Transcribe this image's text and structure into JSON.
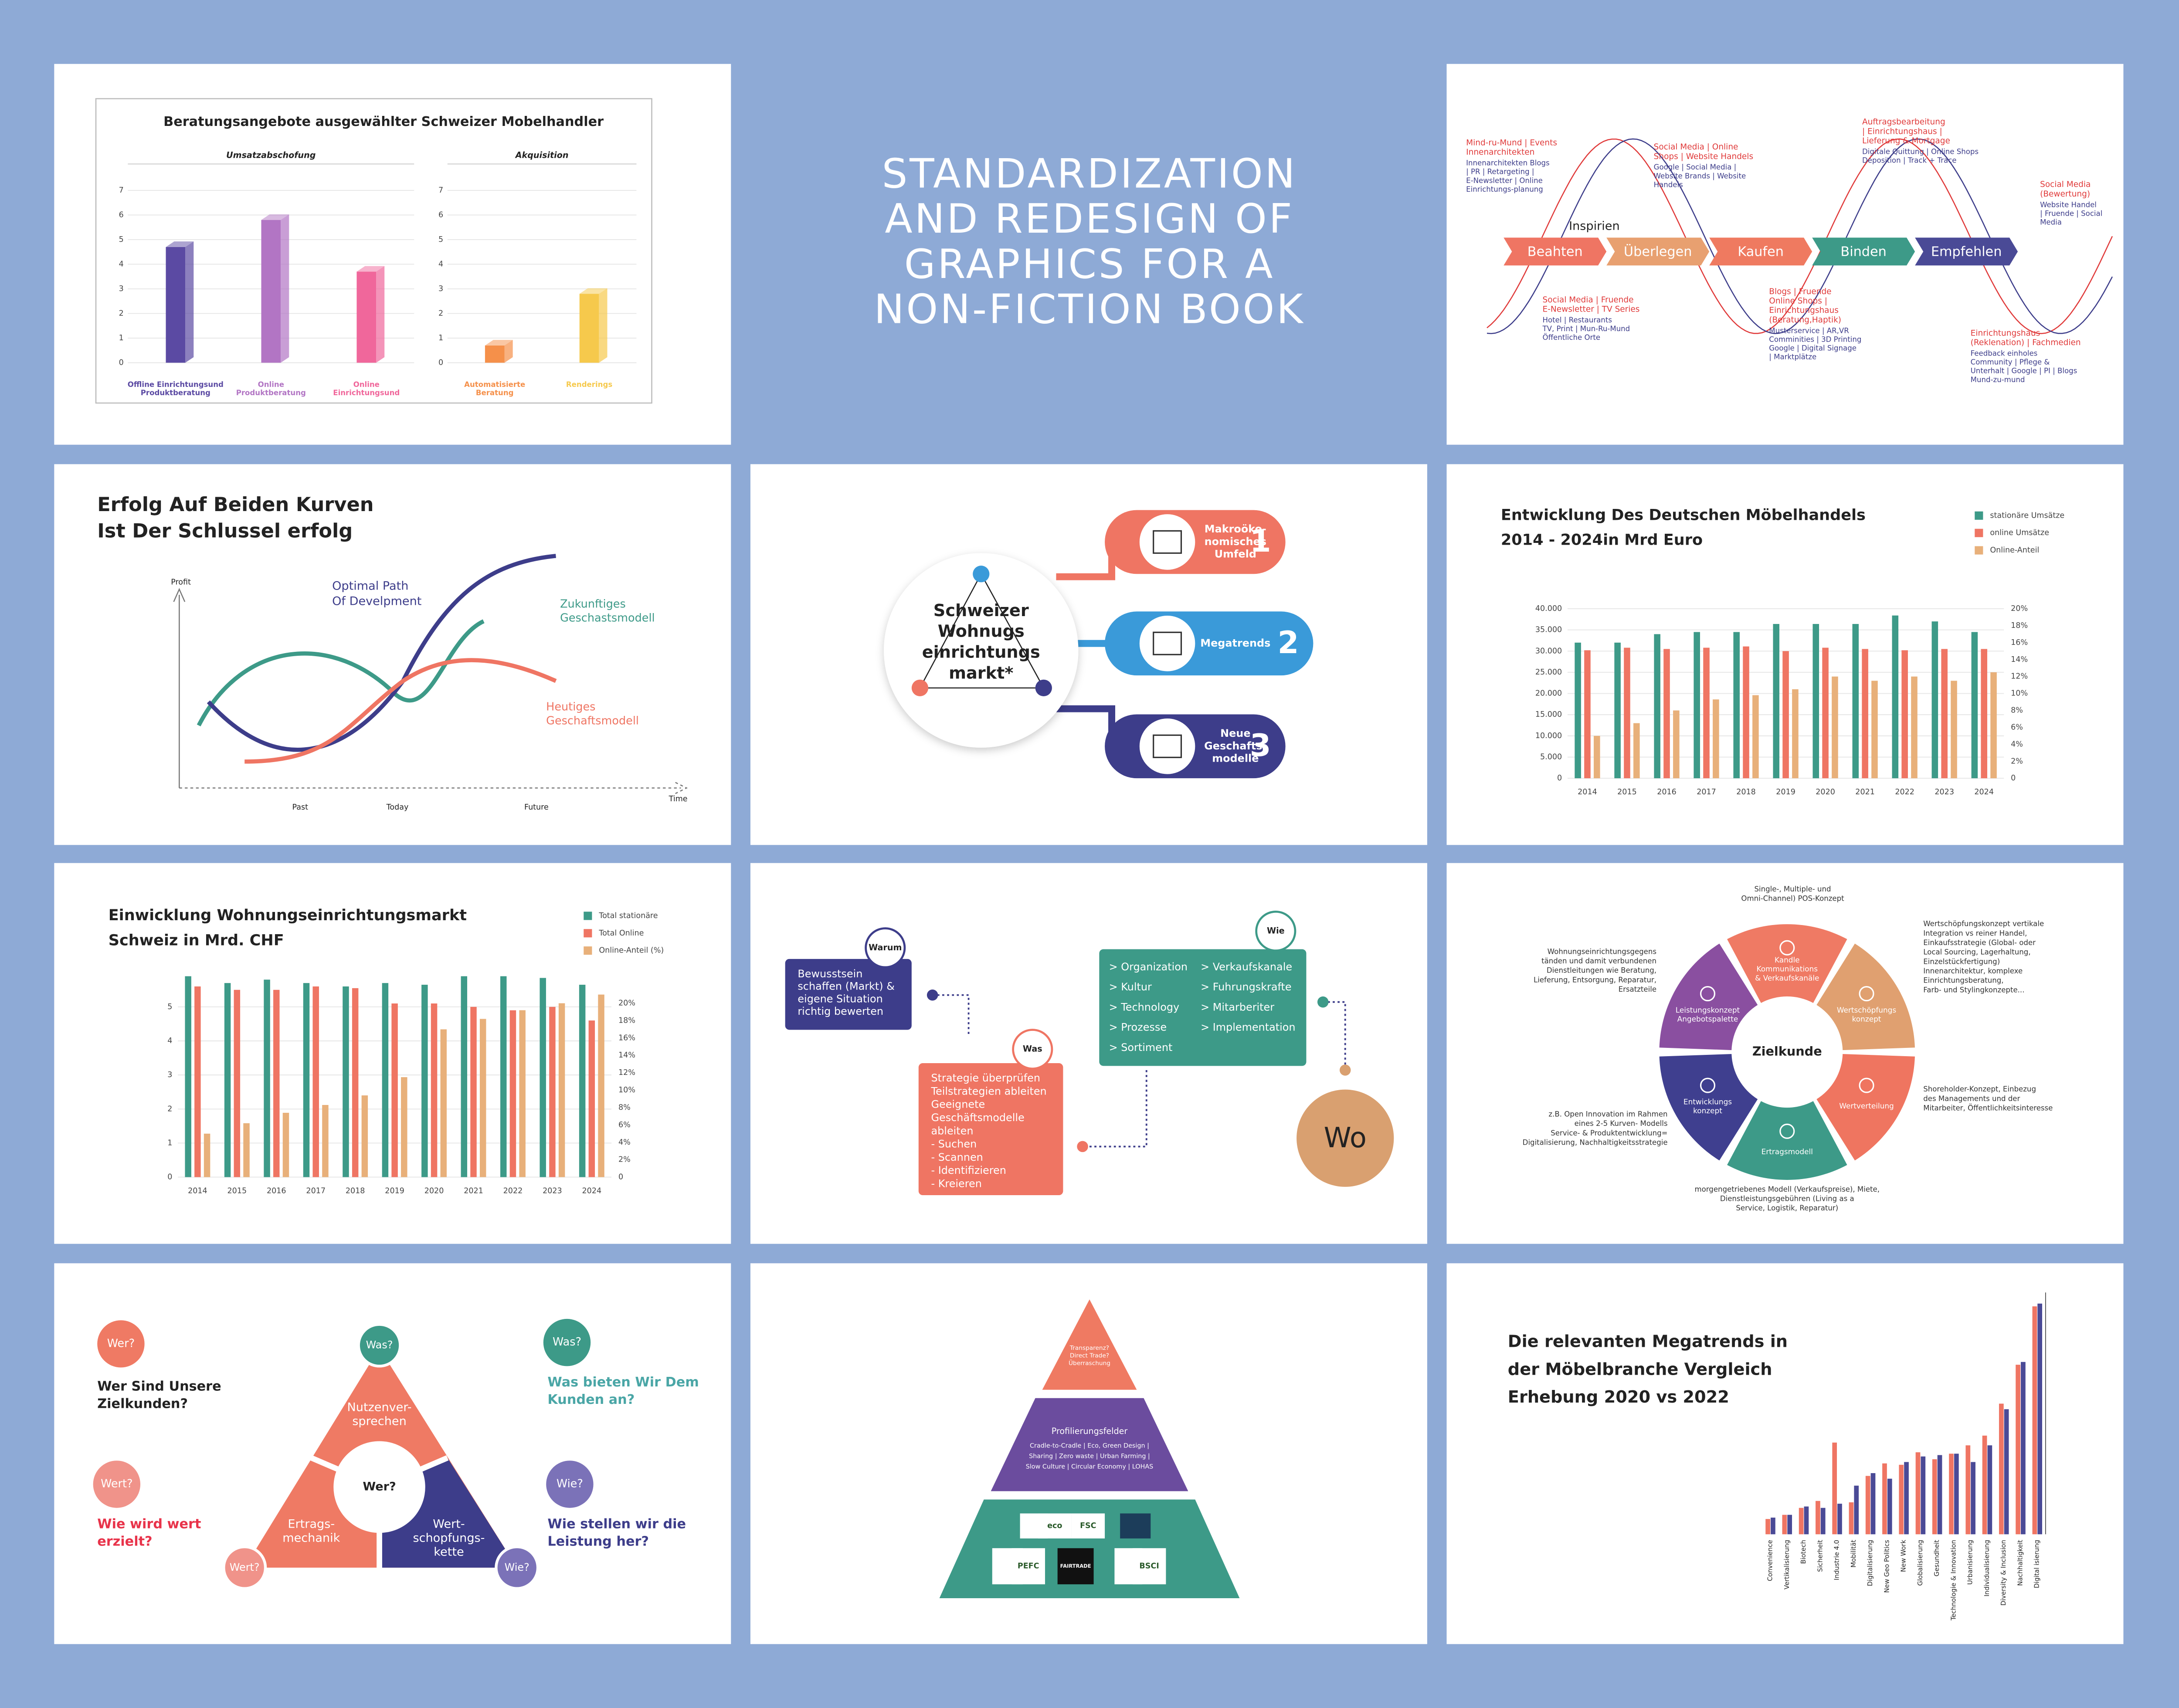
{
  "headline": [
    "STANDARDIZATION",
    "AND REDESIGN OF",
    "GRAPHICS FOR A",
    "NON-FICTION BOOK"
  ],
  "chart_data": [
    {
      "type": "bar3d",
      "title": "Beratungsangebote ausgewählter Schweizer Mobelhandler",
      "subtitle": "Umsatzabschofung",
      "categories": [
        [
          "Offline Einrichtungsund",
          "Produktberatung"
        ],
        [
          "Online",
          "Produktberatung"
        ],
        [
          "Online",
          "Einrichtungsund"
        ]
      ],
      "values": [
        4.7,
        5.8,
        3.7
      ],
      "colors": [
        "#5b4aa3",
        "#b275c4",
        "#f0679b"
      ],
      "ylim": [
        0,
        7
      ],
      "yticks": [
        0,
        1,
        2,
        3,
        4,
        5,
        6,
        7
      ],
      "grid": true
    },
    {
      "type": "bar3d",
      "subtitle": "Akquisition",
      "categories": [
        [
          "Automatisierte",
          "Beratung"
        ],
        [
          "Renderings"
        ]
      ],
      "values": [
        0.7,
        2.8
      ],
      "colors": [
        "#f5904a",
        "#f6c94c"
      ],
      "ylim": [
        0,
        7
      ],
      "yticks": [
        0,
        1,
        2,
        3,
        4,
        5,
        6,
        7
      ],
      "grid": true
    },
    {
      "type": "bar",
      "title": [
        "Entwicklung Des Deutschen Möbelhandels",
        "2014 - 2024in Mrd Euro"
      ],
      "categories": [
        "2014",
        "2015",
        "2016",
        "2017",
        "2018",
        "2019",
        "2020",
        "2021",
        "2022",
        "2023",
        "2024"
      ],
      "series": [
        {
          "name": "stationäre Umsätze",
          "color": "#3d9a88",
          "values": [
            32000,
            32000,
            34000,
            34500,
            34500,
            36400,
            36400,
            36400,
            38400,
            37000,
            34500
          ]
        },
        {
          "name": "online Umsätze",
          "color": "#ef7563",
          "values": [
            30200,
            30800,
            30500,
            30800,
            31100,
            30000,
            30800,
            30500,
            30200,
            30500,
            30500
          ]
        },
        {
          "name": "Online-Anteil",
          "color": "#e8b07a",
          "axis": "y2",
          "values": [
            5,
            6.5,
            8,
            9.3,
            9.8,
            10.5,
            12,
            11.5,
            12,
            11.5,
            12.5
          ]
        }
      ],
      "ylim": [
        0,
        40000
      ],
      "yticks": [
        0,
        {
          "value": 5000,
          "label": "5.000"
        },
        {
          "value": 10000,
          "label": "10.000"
        },
        {
          "value": 15000,
          "label": "15.000"
        },
        {
          "value": 20000,
          "label": "20.000"
        },
        {
          "value": 25000,
          "label": "25.000"
        },
        {
          "value": 30000,
          "label": "30.000"
        },
        {
          "value": 35000,
          "label": "35.000"
        },
        {
          "value": 40000,
          "label": "40.000"
        }
      ],
      "y2lim": [
        0,
        20
      ],
      "y2ticks": [
        0,
        {
          "value": 2,
          "label": "2%"
        },
        {
          "value": 4,
          "label": "4%"
        },
        {
          "value": 6,
          "label": "6%"
        },
        {
          "value": 8,
          "label": "8%"
        },
        {
          "value": 10,
          "label": "10%"
        },
        {
          "value": 12,
          "label": "12%"
        },
        {
          "value": 14,
          "label": "14%"
        },
        {
          "value": 16,
          "label": "16%"
        },
        {
          "value": 18,
          "label": "18%"
        },
        {
          "value": 20,
          "label": "20%"
        }
      ],
      "grid": true
    },
    {
      "type": "bar",
      "title": [
        "Einwicklung Wohnungseinrichtungsmarkt",
        "Schweiz in Mrd. CHF"
      ],
      "categories": [
        "2014",
        "2015",
        "2016",
        "2017",
        "2018",
        "2019",
        "2020",
        "2021",
        "2022",
        "2023",
        "2024"
      ],
      "series": [
        {
          "name": "Total stationäre",
          "color": "#3d9a88",
          "values": [
            5.9,
            5.7,
            5.8,
            5.7,
            5.6,
            5.7,
            5.65,
            5.9,
            5.9,
            5.85,
            5.65
          ]
        },
        {
          "name": "Total Online",
          "color": "#ef7563",
          "values": [
            5.6,
            5.5,
            5.5,
            5.6,
            5.55,
            5.1,
            5.1,
            5,
            4.9,
            5,
            4.6
          ]
        },
        {
          "name": "Online-Anteil (%)",
          "color": "#e8b07a",
          "axis": "y2",
          "values": [
            5,
            6.2,
            7.4,
            8.3,
            9.4,
            11.5,
            17,
            18.2,
            19.2,
            20,
            21
          ]
        }
      ],
      "ylim": [
        0,
        6
      ],
      "yticks": [
        0,
        1,
        2,
        3,
        4,
        5
      ],
      "y2lim": [
        0,
        23.5
      ],
      "y2ticks": [
        0,
        {
          "value": 2,
          "label": "2%"
        },
        {
          "value": 4,
          "label": "4%"
        },
        {
          "value": 6,
          "label": "6%"
        },
        {
          "value": 8,
          "label": "8%"
        },
        {
          "value": 10,
          "label": "10%"
        },
        {
          "value": 12,
          "label": "12%"
        },
        {
          "value": 14,
          "label": "14%"
        },
        {
          "value": 16,
          "label": "16%"
        },
        {
          "value": 18,
          "label": "18%"
        },
        {
          "value": 20,
          "label": "20%"
        }
      ],
      "grid": true
    },
    {
      "type": "bar",
      "title": [
        "Die relevanten Megatrends in",
        "der Möbelbranche Vergleich",
        "Erhebung 2020 vs 2022"
      ],
      "categories": [
        "Convenience",
        "Vertikalisierung",
        "Biotech",
        "Sicherheit",
        "Industrie 4.0",
        "Mobilität",
        "Digitalisierung",
        "New Geo Politics",
        "New Work",
        "Globalisierung",
        "Gesundheit",
        "Technologie & Innovation",
        "Urbanisierung",
        "Individualisierung",
        "Diversity & Inclusion",
        "Nachhaltigkeit",
        "Digital isierung"
      ],
      "series": [
        {
          "color": "#ef7563",
          "values": [
            11,
            14,
            19,
            24,
            66,
            23,
            42,
            51,
            50,
            59,
            54,
            58,
            64,
            71,
            94,
            122,
            164
          ]
        },
        {
          "color": "#4a4a96",
          "values": [
            12,
            14,
            20,
            19,
            22,
            35,
            44,
            40,
            52,
            56,
            57,
            58,
            52,
            64,
            90,
            124,
            166
          ]
        }
      ]
    }
  ],
  "success_curves": {
    "title": [
      "Erfolg Auf Beiden Kurven",
      "Ist Der Schlussel erfolg"
    ],
    "y_label": "Profit",
    "x_label": "Time",
    "x_marks": [
      "Past",
      "Today",
      "Future"
    ],
    "optimal": [
      "Optimal Path",
      "Of Develpment"
    ],
    "future": [
      "Zukunftiges",
      "Geschastsmodell"
    ],
    "current": [
      "Heutiges",
      "Geschaftsmodell"
    ]
  },
  "journey": {
    "label": "Inspirien",
    "stages": [
      "Beahten",
      "Überlegen",
      "Kaufen",
      "Binden",
      "Empfehlen"
    ],
    "notes": [
      {
        "heading": [
          "Mind-ru-Mund | Events",
          "Innenarchitekten"
        ],
        "body": [
          "Innenarchitekten Blogs",
          "| PR | Retargeting |",
          "E-Newsletter | Online",
          "Einrichtungs-planung"
        ]
      },
      {
        "heading": [
          "Social Media | Fruende",
          "E-Newsletter | TV Series"
        ],
        "body": [
          "Hotel | Restaurants",
          "TV, Print | Mun-Ru-Mund",
          "Öffentliche Orte"
        ]
      },
      {
        "heading": [
          "Social Media | Online",
          "Shops | Website Handels"
        ],
        "body": [
          "Google | Social Media |",
          "Website Brands | Website",
          "Handels"
        ]
      },
      {
        "heading": [
          "Blogs | Fruende",
          "Online Shops |",
          "Einrichtungshaus",
          "(Beratung,Haptik)"
        ],
        "body": [
          "Musterservice | AR,VR",
          "Comminities | 3D Printing",
          "Google | Digital Signage",
          "| Marktplätze"
        ]
      },
      {
        "heading": [
          "Auftragsbearbeitung",
          "| Einrichtungshaus |",
          "Lieferung & Mortgage"
        ],
        "body": [
          "Digitale Quittung | Online Shops",
          "Deposition | Track + Trace"
        ]
      },
      {
        "heading": [
          "Social Media",
          "(Bewertung)"
        ],
        "body": [
          "Website Handel",
          "| Fruende | Social",
          "Media"
        ]
      },
      {
        "heading": [
          "Einrichtungshaus",
          "(Reklenation) | Fachmedien"
        ],
        "body": [
          "Feedback einholes",
          "Community | Pflege &",
          "Unterhalt | Google | PI | Blogs",
          "Mund-zu-mund"
        ]
      }
    ]
  },
  "market": {
    "center": [
      "Schweizer",
      "Wohnugs",
      "einrichtungs",
      "markt*"
    ],
    "items": [
      {
        "label": [
          "Makroöko-",
          "nomisches",
          "Umfeld"
        ],
        "number": "1"
      },
      {
        "label": [
          "Megatrends"
        ],
        "number": "2"
      },
      {
        "label": [
          "Neue",
          "Geschafts-",
          "modelle"
        ],
        "number": "3"
      }
    ]
  },
  "steps": {
    "warum": {
      "tag": "Warum",
      "lines": [
        "Bewusstsein",
        "schaffen (Markt) &",
        "eigene Situation",
        "richtig bewerten"
      ]
    },
    "was": {
      "tag": "Was",
      "lines": [
        "Strategie überprüfen",
        "Teilstrategien ableiten",
        "Geeignete",
        "Geschäftsmodelle",
        "ableiten",
        "- Suchen",
        "- Scannen",
        "- Identifizieren",
        "- Kreieren"
      ]
    },
    "wie": {
      "tag": "Wie",
      "left": [
        "> Organization",
        "> Kultur",
        "> Technology",
        "> Prozesse",
        "> Sortiment"
      ],
      "right": [
        "> Verkaufskanale",
        "> Fuhrungskrafte",
        "> Mitarberiter",
        "> Implementation"
      ]
    },
    "wo": "Wo"
  },
  "wheel": {
    "center": "Zielkunde",
    "segments": [
      [
        "Kandle",
        "Kommunikations",
        "& Verkaufskanäle"
      ],
      [
        "Wertschöpfungs",
        "konzept"
      ],
      [
        "Wertverteilung"
      ],
      [
        "Ertragsmodell"
      ],
      [
        "Entwicklungs",
        "konzept"
      ],
      [
        "Leistungskonzept",
        "Angebotspalette"
      ]
    ],
    "notes": [
      [
        "Single-, Multiple- und",
        "Omni-Channel) POS-Konzept"
      ],
      [
        "Wertschöpfungskonzept vertikale",
        "Integration vs reiner Handel,",
        "Einkaufsstrategie (Global- oder",
        "Local Sourcing, Lagerhaltung,",
        "Einzelstückfertigung)",
        "Innenarchitektur, komplexe",
        "Einrichtungsberatung,",
        "Farb- und Stylingkonzepte..."
      ],
      [
        "Shoreholder-Konzept, Einbezug",
        "des Managements und der",
        "Mitarbeiter, Öffentlichkeitsinteresse"
      ],
      [
        "morgengetriebenes Modell (Verkaufspreise), Miete,",
        "Dienstleistungsgebühren (Living as a",
        "Service, Logistik, Reparatur)"
      ],
      [
        "z.B. Open Innovation im Rahmen",
        "eines 2-5 Kurven- Modells",
        "Service- & Produktentwicklung=",
        "Digitalisierung, Nachhaltigkeitsstrategie"
      ],
      [
        "Wohnungseinrichtungsgegens",
        "tänden und damit verbundenen",
        "Dienstleitungen wie Beratung,",
        "Lieferung, Entsorgung, Reparatur,",
        "Ersatzteile"
      ]
    ]
  },
  "triangle": {
    "badges": [
      "Wer?",
      "Wert?",
      "Was?",
      "Wie?"
    ],
    "questions": [
      [
        "Wer Sind Unsere",
        "Zielkunden?"
      ],
      [
        "Wie wird wert",
        "erzielt?"
      ],
      [
        "Was bieten Wir Dem",
        "Kunden an?"
      ],
      [
        "Wie stellen wir die",
        "Leistung her?"
      ]
    ],
    "parts": [
      [
        "Nutzenver-",
        "sprechen"
      ],
      [
        "Ertrags-",
        "mechanik"
      ],
      [
        "Wert-",
        "schopfungs-",
        "kette"
      ]
    ],
    "center": "Wer?",
    "corners": [
      "Was?",
      "Wert?",
      "Wie?"
    ]
  },
  "pyramid": {
    "top": [
      "Transparenz?",
      "Direct Trade?",
      "Überraschung"
    ],
    "middle": [
      "Profilierungsfelder",
      "Cradle-to-Cradle | Eco, Green Design |",
      "Sharing | Zero waste | Urban Farming |",
      "Slow Culture | Circular Economy | LOHAS"
    ],
    "logos": [
      "eco",
      "FSC",
      "PEFC",
      "FAIRTRADE",
      "BSCI"
    ]
  }
}
